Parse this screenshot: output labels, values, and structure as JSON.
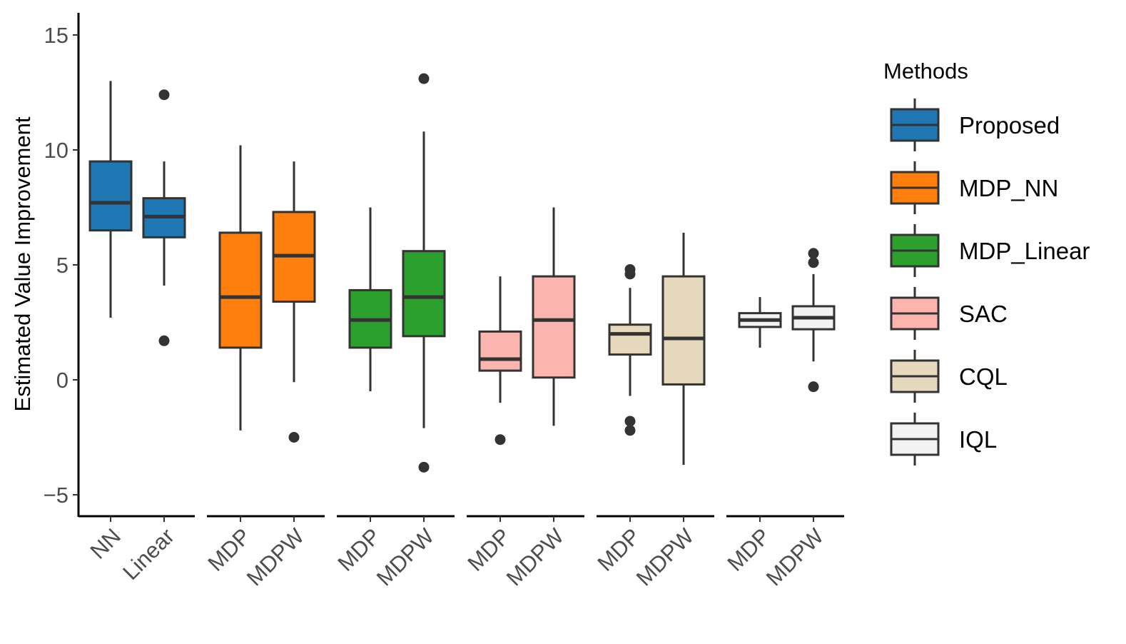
{
  "chart_data": {
    "type": "box",
    "ylabel": "Estimated Value Improvement",
    "ylim": [
      -6,
      16
    ],
    "yticks": [
      -5,
      0,
      5,
      10,
      15
    ],
    "ytick_labels": [
      "−5",
      "0",
      "5",
      "10",
      "15"
    ],
    "grid": false,
    "legend": {
      "title": "Methods",
      "placement": "right",
      "entries": [
        {
          "name": "Proposed",
          "color": "#1f77b4"
        },
        {
          "name": "MDP_NN",
          "color": "#ff7f0e"
        },
        {
          "name": "MDP_Linear",
          "color": "#2ca02c"
        },
        {
          "name": "SAC",
          "color": "#fbb4ae"
        },
        {
          "name": "CQL",
          "color": "#e5d8bd"
        },
        {
          "name": "IQL",
          "color": "#f2f2f2"
        }
      ]
    },
    "groups": [
      {
        "method": "Proposed",
        "boxes": [
          {
            "label": "NN",
            "whisker_low": 2.7,
            "q1": 6.5,
            "median": 7.7,
            "q3": 9.5,
            "whisker_high": 13.0,
            "outliers": []
          },
          {
            "label": "Linear",
            "whisker_low": 4.1,
            "q1": 6.2,
            "median": 7.1,
            "q3": 7.9,
            "whisker_high": 9.5,
            "outliers": [
              12.4,
              1.7
            ]
          }
        ]
      },
      {
        "method": "MDP_NN",
        "boxes": [
          {
            "label": "MDP",
            "whisker_low": -2.2,
            "q1": 1.4,
            "median": 3.6,
            "q3": 6.4,
            "whisker_high": 10.2,
            "outliers": []
          },
          {
            "label": "MDPW",
            "whisker_low": -0.1,
            "q1": 3.4,
            "median": 5.4,
            "q3": 7.3,
            "whisker_high": 9.5,
            "outliers": [
              -2.5
            ]
          }
        ]
      },
      {
        "method": "MDP_Linear",
        "boxes": [
          {
            "label": "MDP",
            "whisker_low": -0.5,
            "q1": 1.4,
            "median": 2.6,
            "q3": 3.9,
            "whisker_high": 7.5,
            "outliers": []
          },
          {
            "label": "MDPW",
            "whisker_low": -2.1,
            "q1": 1.9,
            "median": 3.6,
            "q3": 5.6,
            "whisker_high": 10.8,
            "outliers": [
              13.1,
              -3.8
            ]
          }
        ]
      },
      {
        "method": "SAC",
        "boxes": [
          {
            "label": "MDP",
            "whisker_low": -1.0,
            "q1": 0.4,
            "median": 0.9,
            "q3": 2.1,
            "whisker_high": 4.5,
            "outliers": [
              -2.6
            ]
          },
          {
            "label": "MDPW",
            "whisker_low": -2.0,
            "q1": 0.1,
            "median": 2.6,
            "q3": 4.5,
            "whisker_high": 7.5,
            "outliers": []
          }
        ]
      },
      {
        "method": "CQL",
        "boxes": [
          {
            "label": "MDP",
            "whisker_low": -0.7,
            "q1": 1.1,
            "median": 2.0,
            "q3": 2.4,
            "whisker_high": 4.0,
            "outliers": [
              4.8,
              4.6,
              -1.8,
              -2.2
            ]
          },
          {
            "label": "MDPW",
            "whisker_low": -3.7,
            "q1": -0.2,
            "median": 1.8,
            "q3": 4.5,
            "whisker_high": 6.4,
            "outliers": []
          }
        ]
      },
      {
        "method": "IQL",
        "boxes": [
          {
            "label": "MDP",
            "whisker_low": 1.4,
            "q1": 2.3,
            "median": 2.6,
            "q3": 2.9,
            "whisker_high": 3.6,
            "outliers": []
          },
          {
            "label": "MDPW",
            "whisker_low": 0.8,
            "q1": 2.2,
            "median": 2.7,
            "q3": 3.2,
            "whisker_high": 4.6,
            "outliers": [
              5.5,
              5.1,
              -0.3
            ]
          }
        ]
      }
    ]
  }
}
